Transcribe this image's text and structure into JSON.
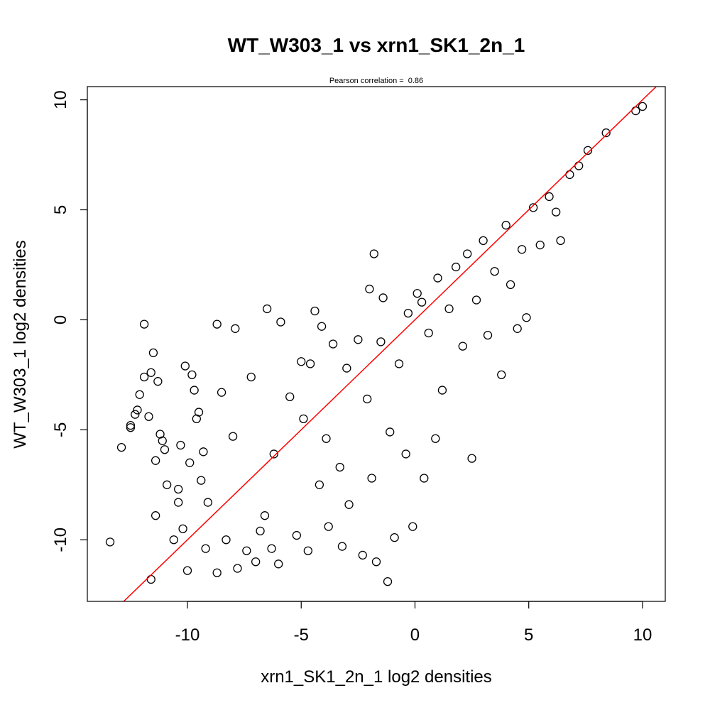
{
  "chart_data": {
    "type": "scatter",
    "title": "WT_W303_1 vs xrn1_SK1_2n_1",
    "subtitle_label": "Pearson correlation = ",
    "subtitle_value": "0.86",
    "pearson_correlation": 0.86,
    "xlabel": "xrn1_SK1_2n_1 log2 densities",
    "ylabel": "WT_W303_1 log2 densities",
    "xlim": [
      -14.4,
      11.0
    ],
    "ylim": [
      -12.8,
      10.6
    ],
    "x_ticks": [
      -10,
      -5,
      0,
      5,
      10
    ],
    "y_ticks": [
      -10,
      -5,
      0,
      5,
      10
    ],
    "x_tick_labels": [
      "-10",
      "-5",
      "0",
      "5",
      "10"
    ],
    "y_tick_labels": [
      "-10",
      "-5",
      "0",
      "5",
      "10"
    ],
    "grid": false,
    "point_style": "open-circle",
    "point_color": "#000000",
    "reference_line": {
      "slope": 1,
      "intercept": 0,
      "color": "#ff0000"
    },
    "series": [
      {
        "values": [
          [
            -13.4,
            -10.1
          ],
          [
            -12.9,
            -5.8
          ],
          [
            -12.5,
            -4.9
          ],
          [
            -12.5,
            -4.8
          ],
          [
            -12.3,
            -4.3
          ],
          [
            -12.2,
            -4.1
          ],
          [
            -12.1,
            -3.4
          ],
          [
            -11.9,
            -0.2
          ],
          [
            -11.9,
            -2.6
          ],
          [
            -11.7,
            -4.4
          ],
          [
            -11.6,
            -2.4
          ],
          [
            -11.6,
            -11.8
          ],
          [
            -11.5,
            -1.5
          ],
          [
            -11.4,
            -6.4
          ],
          [
            -11.4,
            -8.9
          ],
          [
            -11.3,
            -2.8
          ],
          [
            -11.2,
            -5.2
          ],
          [
            -11.1,
            -5.5
          ],
          [
            -11.0,
            -5.9
          ],
          [
            -10.9,
            -7.5
          ],
          [
            -10.6,
            -10.0
          ],
          [
            -10.4,
            -8.3
          ],
          [
            -10.4,
            -7.7
          ],
          [
            -10.3,
            -5.7
          ],
          [
            -10.2,
            -9.5
          ],
          [
            -10.1,
            -2.1
          ],
          [
            -10.0,
            -11.4
          ],
          [
            -9.9,
            -6.5
          ],
          [
            -9.8,
            -2.5
          ],
          [
            -9.7,
            -3.2
          ],
          [
            -9.6,
            -4.5
          ],
          [
            -9.5,
            -4.2
          ],
          [
            -9.4,
            -7.3
          ],
          [
            -9.3,
            -6.0
          ],
          [
            -9.2,
            -10.4
          ],
          [
            -9.1,
            -8.3
          ],
          [
            -8.7,
            -0.2
          ],
          [
            -8.7,
            -11.5
          ],
          [
            -8.5,
            -3.3
          ],
          [
            -8.3,
            -10.0
          ],
          [
            -8.0,
            -5.3
          ],
          [
            -7.9,
            -0.4
          ],
          [
            -7.8,
            -11.3
          ],
          [
            -7.4,
            -10.5
          ],
          [
            -7.2,
            -2.6
          ],
          [
            -7.0,
            -11.0
          ],
          [
            -6.8,
            -9.6
          ],
          [
            -6.6,
            -8.9
          ],
          [
            -6.5,
            0.5
          ],
          [
            -6.3,
            -10.4
          ],
          [
            -6.2,
            -6.1
          ],
          [
            -6.0,
            -11.1
          ],
          [
            -5.9,
            -0.1
          ],
          [
            -5.5,
            -3.5
          ],
          [
            -5.2,
            -9.8
          ],
          [
            -5.0,
            -1.9
          ],
          [
            -4.9,
            -4.5
          ],
          [
            -4.7,
            -10.5
          ],
          [
            -4.6,
            -2.0
          ],
          [
            -4.4,
            0.4
          ],
          [
            -4.2,
            -7.5
          ],
          [
            -4.1,
            -0.3
          ],
          [
            -3.9,
            -5.4
          ],
          [
            -3.8,
            -9.4
          ],
          [
            -3.6,
            -1.1
          ],
          [
            -3.3,
            -6.7
          ],
          [
            -3.2,
            -10.3
          ],
          [
            -3.0,
            -2.2
          ],
          [
            -2.9,
            -8.4
          ],
          [
            -2.5,
            -0.9
          ],
          [
            -2.3,
            -10.7
          ],
          [
            -2.1,
            -3.6
          ],
          [
            -2.0,
            1.4
          ],
          [
            -1.9,
            -7.2
          ],
          [
            -1.8,
            3.0
          ],
          [
            -1.7,
            -11.0
          ],
          [
            -1.5,
            -1.0
          ],
          [
            -1.4,
            1.0
          ],
          [
            -1.2,
            -11.9
          ],
          [
            -1.1,
            -5.1
          ],
          [
            -0.9,
            -9.9
          ],
          [
            -0.7,
            -2.0
          ],
          [
            -0.4,
            -6.1
          ],
          [
            -0.3,
            0.3
          ],
          [
            -0.1,
            -9.4
          ],
          [
            0.1,
            1.2
          ],
          [
            0.3,
            0.8
          ],
          [
            0.4,
            -7.2
          ],
          [
            0.6,
            -0.6
          ],
          [
            0.9,
            -5.4
          ],
          [
            1.0,
            1.9
          ],
          [
            1.2,
            -3.2
          ],
          [
            1.5,
            0.5
          ],
          [
            1.8,
            2.4
          ],
          [
            2.1,
            -1.2
          ],
          [
            2.3,
            3.0
          ],
          [
            2.5,
            -6.3
          ],
          [
            2.7,
            0.9
          ],
          [
            3.0,
            3.6
          ],
          [
            3.2,
            -0.7
          ],
          [
            3.5,
            2.2
          ],
          [
            3.8,
            -2.5
          ],
          [
            4.0,
            4.3
          ],
          [
            4.2,
            1.6
          ],
          [
            4.5,
            -0.4
          ],
          [
            4.7,
            3.2
          ],
          [
            4.9,
            0.1
          ],
          [
            5.2,
            5.1
          ],
          [
            5.5,
            3.4
          ],
          [
            5.9,
            5.6
          ],
          [
            6.2,
            4.9
          ],
          [
            6.4,
            3.6
          ],
          [
            6.8,
            6.6
          ],
          [
            7.2,
            7.0
          ],
          [
            7.6,
            7.7
          ],
          [
            8.4,
            8.5
          ],
          [
            9.7,
            9.5
          ],
          [
            10.0,
            9.7
          ]
        ]
      }
    ]
  }
}
